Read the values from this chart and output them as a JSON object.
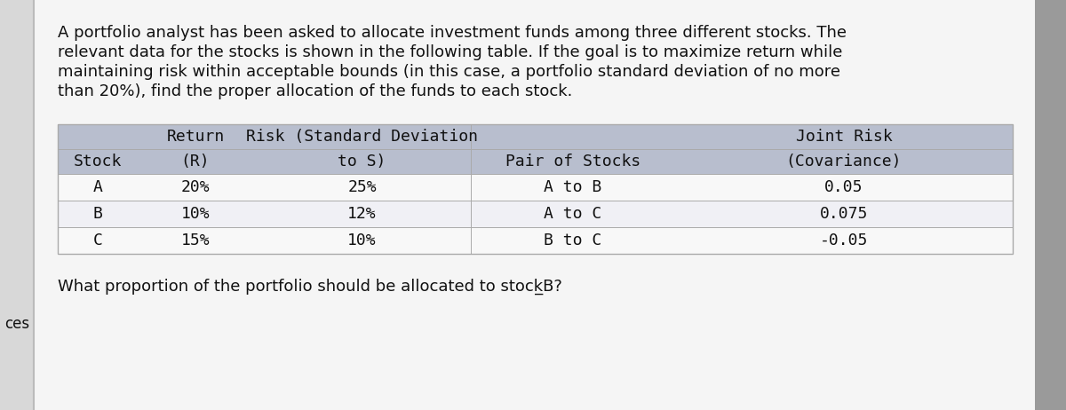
{
  "background_color": "#e8e8e8",
  "page_bg": "#f5f5f5",
  "paragraph_text": "A portfolio analyst has been asked to allocate investment funds among three different stocks. The\nrelevant data for the stocks is shown in the following table. If the goal is to maximize return while\nmaintaining risk within acceptable bounds (in this case, a portfolio standard deviation of no more\nthan 20%), find the proper allocation of the funds to each stock.",
  "question_text": "What proportion of the portfolio should be allocated to stock̲B?",
  "left_label": "ces",
  "header_row1_cols": [
    "",
    "Return",
    "Risk (Standard Deviation",
    "",
    "Joint Risk"
  ],
  "header_row2_cols": [
    "Stock",
    "(R)",
    "to S)",
    "Pair of Stocks",
    "(Covariance)"
  ],
  "data_rows": [
    [
      "A",
      "20%",
      "25%",
      "A to B",
      "0.05"
    ],
    [
      "B",
      "10%",
      "12%",
      "A to C",
      "0.075"
    ],
    [
      "C",
      "15%",
      "10%",
      "B to C",
      "-0.05"
    ]
  ],
  "header_bg": "#b8bece",
  "data_bg_light": "#f0f0f5",
  "data_bg_white": "#f8f8f8",
  "table_text_color": "#111111",
  "para_fontsize": 13.0,
  "question_fontsize": 13.0,
  "table_fontsize": 13.0,
  "right_sidebar_color": "#9a9a9a",
  "left_sidebar_color": "#d8d8d8"
}
